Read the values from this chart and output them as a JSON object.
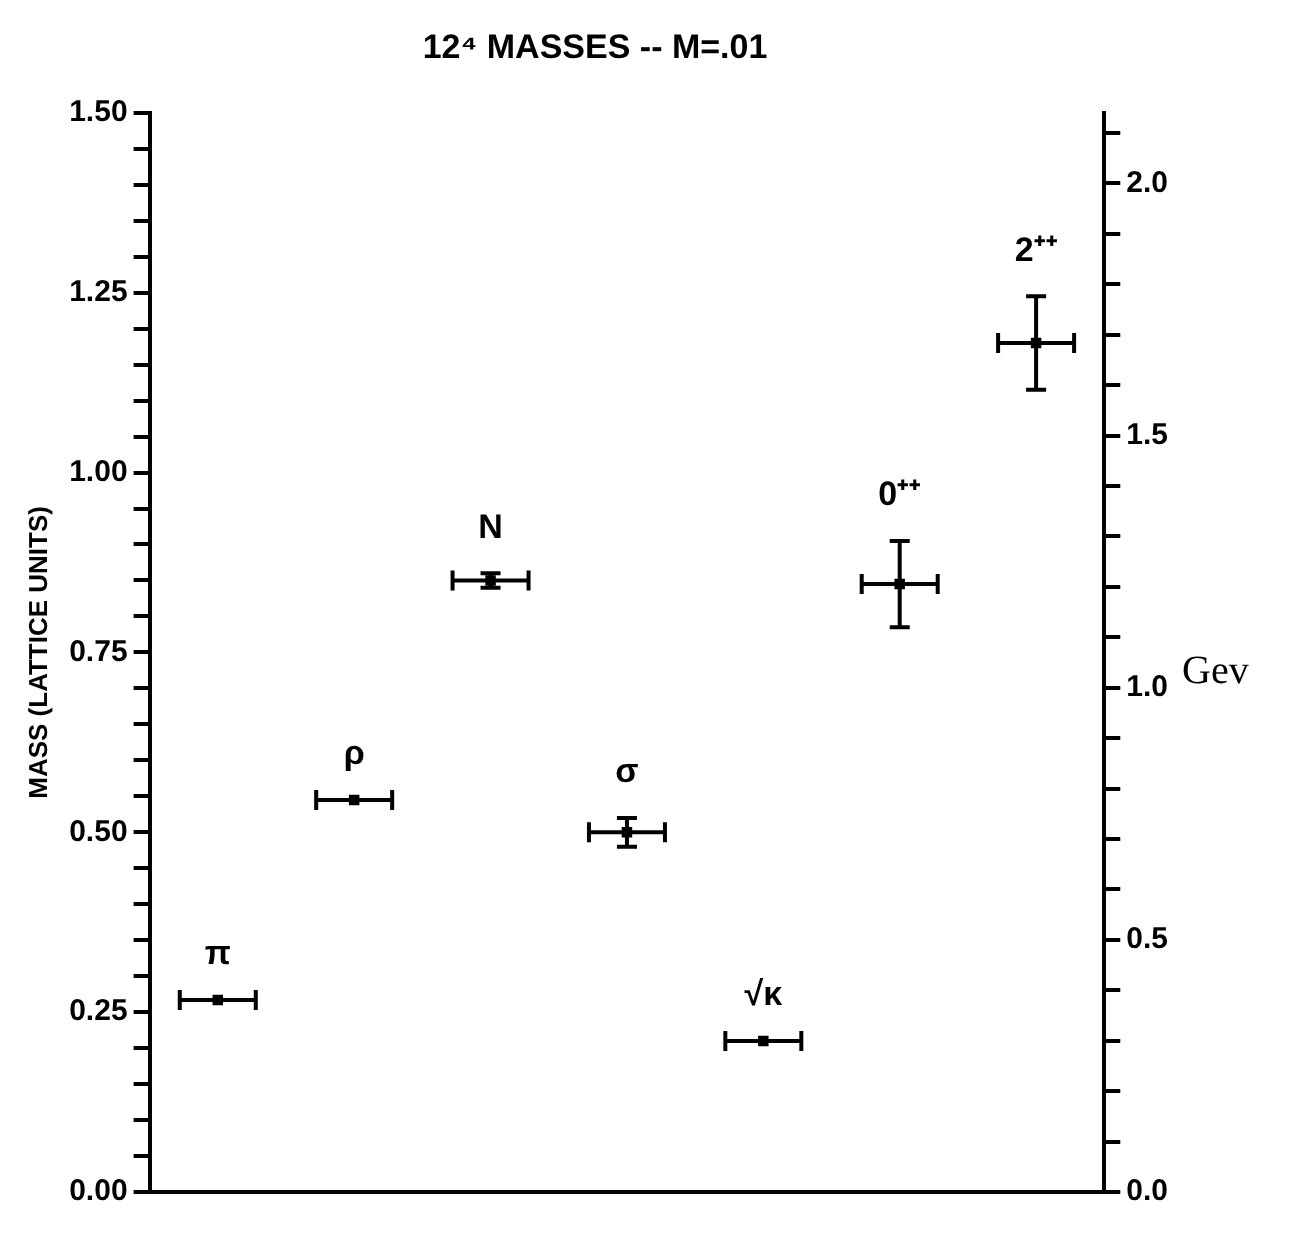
{
  "chart_data": {
    "type": "scatter",
    "title": "12⁴ MASSES -- M=.01",
    "ylabel": "MASS (LATTICE UNITS)",
    "y2label": "Gev",
    "categories": [
      null,
      null,
      null,
      null,
      null,
      null,
      null
    ],
    "ylim": [
      0,
      1.5
    ],
    "yticks": [
      {
        "value": 0,
        "label": "0.00"
      },
      {
        "value": 0.05,
        "label": null
      },
      {
        "value": 0.1,
        "label": null
      },
      {
        "value": 0.15,
        "label": null
      },
      {
        "value": 0.2,
        "label": null
      },
      {
        "value": 0.25,
        "label": "0.25"
      },
      {
        "value": 0.3,
        "label": null
      },
      {
        "value": 0.35,
        "label": null
      },
      {
        "value": 0.4,
        "label": null
      },
      {
        "value": 0.45,
        "label": null
      },
      {
        "value": 0.5,
        "label": "0.50"
      },
      {
        "value": 0.55,
        "label": null
      },
      {
        "value": 0.6,
        "label": null
      },
      {
        "value": 0.65,
        "label": null
      },
      {
        "value": 0.7,
        "label": null
      },
      {
        "value": 0.75,
        "label": "0.75"
      },
      {
        "value": 0.8,
        "label": null
      },
      {
        "value": 0.85,
        "label": null
      },
      {
        "value": 0.9,
        "label": null
      },
      {
        "value": 0.95,
        "label": null
      },
      {
        "value": 1,
        "label": "1.00"
      },
      {
        "value": 1.05,
        "label": null
      },
      {
        "value": 1.1,
        "label": null
      },
      {
        "value": 1.15,
        "label": null
      },
      {
        "value": 1.2,
        "label": null
      },
      {
        "value": 1.25,
        "label": "1.25"
      },
      {
        "value": 1.3,
        "label": null
      },
      {
        "value": 1.35,
        "label": null
      },
      {
        "value": 1.4,
        "label": null
      },
      {
        "value": 1.45,
        "label": null
      },
      {
        "value": 1.5,
        "label": "1.50"
      }
    ],
    "y2lim": [
      0,
      2.14
    ],
    "y2ticks": [
      {
        "value": 0,
        "label": "0.0"
      },
      {
        "value": 0.1,
        "label": null
      },
      {
        "value": 0.2,
        "label": null
      },
      {
        "value": 0.3,
        "label": null
      },
      {
        "value": 0.4,
        "label": null
      },
      {
        "value": 0.5,
        "label": "0.5"
      },
      {
        "value": 0.6,
        "label": null
      },
      {
        "value": 0.7,
        "label": null
      },
      {
        "value": 0.8,
        "label": null
      },
      {
        "value": 0.9,
        "label": null
      },
      {
        "value": 1,
        "label": "1.0"
      },
      {
        "value": 1.1,
        "label": null
      },
      {
        "value": 1.2,
        "label": null
      },
      {
        "value": 1.3,
        "label": null
      },
      {
        "value": 1.4,
        "label": null
      },
      {
        "value": 1.5,
        "label": "1.5"
      },
      {
        "value": 1.6,
        "label": null
      },
      {
        "value": 1.7,
        "label": null
      },
      {
        "value": 1.8,
        "label": null
      },
      {
        "value": 1.9,
        "label": null
      },
      {
        "value": 2,
        "label": "2.0"
      },
      {
        "value": 2.1,
        "label": null
      }
    ],
    "tick_labels": "y",
    "grid": false,
    "legend": false,
    "marker": "square",
    "series": [
      {
        "name": "π",
        "color": "#000000",
        "values": [
          0.267,
          null,
          null,
          null,
          null,
          null,
          null
        ],
        "errors": [
          null,
          null,
          null,
          null,
          null,
          null,
          null
        ]
      },
      {
        "name": "ρ",
        "color": "#000000",
        "values": [
          null,
          0.545,
          null,
          null,
          null,
          null,
          null
        ],
        "errors": [
          null,
          null,
          null,
          null,
          null,
          null,
          null
        ]
      },
      {
        "name": "N",
        "color": "#000000",
        "values": [
          null,
          null,
          0.85,
          null,
          null,
          null,
          null
        ],
        "errors": [
          null,
          null,
          0.01,
          null,
          null,
          null,
          null
        ]
      },
      {
        "name": "σ",
        "color": "#000000",
        "values": [
          null,
          null,
          null,
          0.5,
          null,
          null,
          null
        ],
        "errors": [
          null,
          null,
          null,
          0.02,
          null,
          null,
          null
        ]
      },
      {
        "name": "√κ",
        "color": "#000000",
        "values": [
          null,
          null,
          null,
          null,
          0.21,
          null,
          null
        ],
        "errors": [
          null,
          null,
          null,
          null,
          null,
          null,
          null
        ]
      },
      {
        "name": "0⁺⁺",
        "color": "#000000",
        "values": [
          null,
          null,
          null,
          null,
          null,
          0.845,
          null
        ],
        "errors": [
          null,
          null,
          null,
          null,
          null,
          0.06,
          null
        ]
      },
      {
        "name": "2⁺⁺",
        "color": "#000000",
        "values": [
          null,
          null,
          null,
          null,
          null,
          null,
          1.18
        ],
        "errors": [
          null,
          null,
          null,
          null,
          null,
          null,
          0.065
        ]
      }
    ]
  }
}
